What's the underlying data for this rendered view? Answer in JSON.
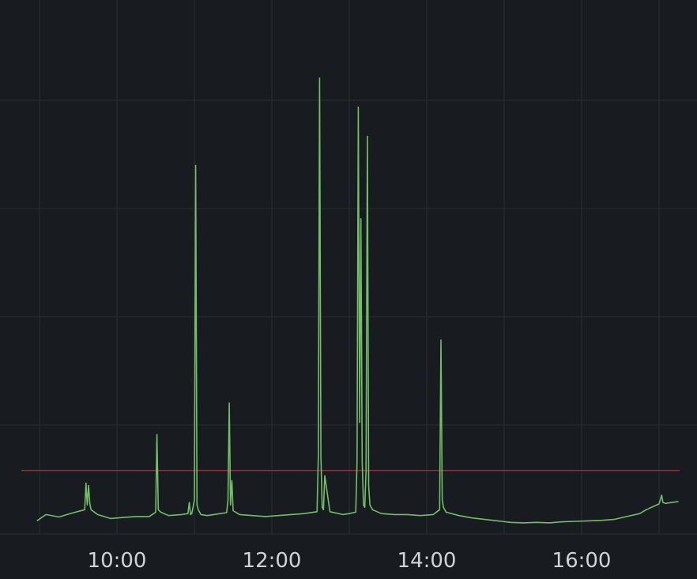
{
  "chart_data": {
    "type": "line",
    "title": "",
    "xlabel": "",
    "ylabel": "",
    "x_ticks": [
      "10:00",
      "12:00",
      "14:00",
      "16:00"
    ],
    "xlim": [
      "08:57",
      "17:15"
    ],
    "ylim": [
      0,
      100
    ],
    "grid": true,
    "legend": "none",
    "threshold": 13.1,
    "colors": {
      "background": "#181b1f",
      "grid": "#2a2d33",
      "series": "#73bf69",
      "threshold": "#c4161c",
      "tick_text": "#d0d3da"
    },
    "series": [
      {
        "name": "",
        "x": [
          "08:58",
          "09:05",
          "09:15",
          "09:25",
          "09:35",
          "09:36",
          "09:37",
          "09:38",
          "09:39",
          "09:40",
          "09:45",
          "09:55",
          "10:05",
          "10:15",
          "10:25",
          "10:30",
          "10:31",
          "10:32",
          "10:34",
          "10:40",
          "10:50",
          "10:55",
          "10:56",
          "10:57",
          "10:58",
          "11:00",
          "11:01",
          "11:02",
          "11:03",
          "11:05",
          "11:10",
          "11:20",
          "11:25",
          "11:26",
          "11:27",
          "11:28",
          "11:29",
          "11:30",
          "11:35",
          "11:45",
          "11:55",
          "12:05",
          "12:15",
          "12:25",
          "12:35",
          "12:36",
          "12:37",
          "12:38",
          "12:39",
          "12:40",
          "12:41",
          "12:45",
          "12:55",
          "13:00",
          "13:05",
          "13:06",
          "13:07",
          "13:08",
          "13:09",
          "13:10",
          "13:11",
          "13:12",
          "13:13",
          "13:14",
          "13:15",
          "13:16",
          "13:18",
          "13:25",
          "13:35",
          "13:45",
          "13:55",
          "14:05",
          "14:10",
          "14:11",
          "14:12",
          "14:13",
          "14:15",
          "14:25",
          "14:35",
          "14:45",
          "14:55",
          "15:05",
          "15:15",
          "15:25",
          "15:35",
          "15:45",
          "15:55",
          "16:05",
          "16:15",
          "16:25",
          "16:35",
          "16:45",
          "16:50",
          "16:55",
          "17:00",
          "17:02",
          "17:03",
          "17:05",
          "17:10",
          "17:15"
        ],
        "values": [
          2.7,
          4.0,
          3.5,
          4.3,
          5.0,
          10.5,
          6.0,
          10.0,
          6.2,
          5.0,
          4.0,
          3.2,
          3.4,
          3.6,
          3.6,
          4.5,
          20.5,
          5.0,
          4.5,
          3.8,
          4.0,
          4.2,
          6.5,
          4.0,
          4.2,
          7.0,
          76.0,
          6.0,
          5.0,
          4.0,
          3.8,
          4.2,
          4.4,
          7.0,
          27.0,
          6.0,
          11.0,
          4.8,
          4.0,
          3.8,
          3.6,
          3.8,
          4.0,
          4.2,
          4.6,
          16.0,
          94.0,
          16.0,
          5.5,
          5.0,
          12.0,
          4.6,
          4.0,
          4.2,
          4.5,
          15.0,
          88.0,
          23.0,
          65.0,
          15.0,
          6.0,
          5.5,
          13.0,
          82.0,
          10.0,
          6.0,
          5.0,
          4.2,
          4.0,
          4.0,
          3.8,
          4.0,
          5.0,
          40.0,
          7.0,
          5.5,
          4.5,
          3.8,
          3.3,
          3.0,
          2.7,
          2.4,
          2.3,
          2.4,
          2.3,
          2.5,
          2.6,
          2.7,
          2.8,
          3.0,
          3.6,
          4.2,
          5.0,
          5.6,
          6.2,
          8.0,
          6.5,
          6.3,
          6.5,
          6.7
        ]
      }
    ]
  }
}
